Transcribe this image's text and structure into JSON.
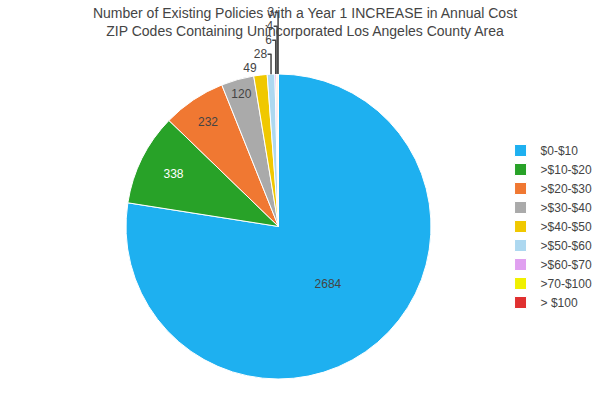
{
  "chart_data": {
    "type": "pie",
    "title": "Number of Existing Policies with a Year 1 INCREASE in Annual Cost\nZIP Codes Containing Unincorporated Los Angeles County Area",
    "categories": [
      "$0-$10",
      ">$10-$20",
      ">$20-$30",
      ">$30-$40",
      ">$40-$50",
      ">$50-$60",
      ">$60-$70",
      ">70-$100",
      "> $100"
    ],
    "values": [
      2684,
      338,
      232,
      120,
      49,
      28,
      6,
      4,
      3
    ],
    "colors": [
      "#1EB0F0",
      "#28A228",
      "#F07832",
      "#AAAAAA",
      "#F0C800",
      "#ADD8F0",
      "#E0A0F0",
      "#F0F000",
      "#E03030"
    ],
    "data_labels": true,
    "legend": "right"
  }
}
